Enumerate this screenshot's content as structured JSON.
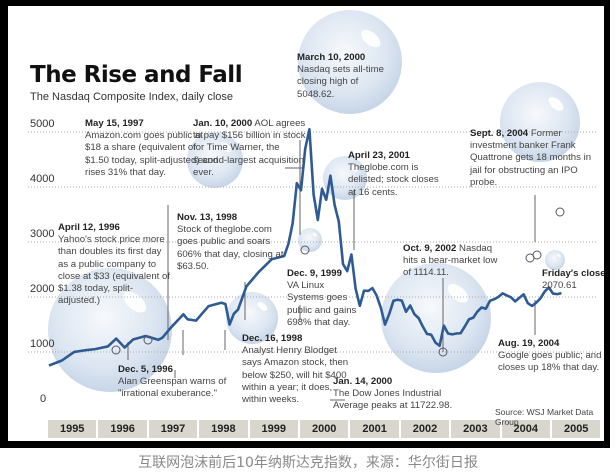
{
  "chart_data": {
    "type": "line",
    "title": "The Rise and Fall",
    "subtitle": "The Nasdaq Composite Index, daily close",
    "ylim": [
      0,
      5200
    ],
    "yticks": [
      "0",
      "1000",
      "2000",
      "3000",
      "4000",
      "5000"
    ],
    "xticks": [
      "1995",
      "1996",
      "1997",
      "1998",
      "1999",
      "2000",
      "2001",
      "2002",
      "2003",
      "2004",
      "2005"
    ],
    "grid": true,
    "line_color": "#2e5b93",
    "series": [
      {
        "points": [
          [
            "1995-01",
            755
          ],
          [
            "1995-04",
            843
          ],
          [
            "1995-07",
            1001
          ],
          [
            "1995-10",
            1036
          ],
          [
            "1995-12",
            1052
          ],
          [
            "1996-03",
            1101
          ],
          [
            "1996-05",
            1243
          ],
          [
            "1996-07",
            1081
          ],
          [
            "1996-09",
            1227
          ],
          [
            "1996-12",
            1291
          ],
          [
            "1997-03",
            1222
          ],
          [
            "1997-04",
            1260
          ],
          [
            "1997-06",
            1442
          ],
          [
            "1997-09",
            1686
          ],
          [
            "1997-10",
            1594
          ],
          [
            "1997-12",
            1570
          ],
          [
            "1998-03",
            1835
          ],
          [
            "1998-06",
            1895
          ],
          [
            "1998-07",
            1872
          ],
          [
            "1998-08",
            1499
          ],
          [
            "1998-09",
            1694
          ],
          [
            "1998-10",
            1771
          ],
          [
            "1998-12",
            2193
          ],
          [
            "1999-03",
            2461
          ],
          [
            "1999-06",
            2686
          ],
          [
            "1999-09",
            2746
          ],
          [
            "1999-10",
            2966
          ],
          [
            "1999-11",
            3336
          ],
          [
            "1999-12",
            4069
          ],
          [
            "2000-01",
            3940
          ],
          [
            "2000-02",
            4696
          ],
          [
            "2000-03",
            5048.62
          ],
          [
            "2000-04",
            3861
          ],
          [
            "2000-05",
            3400
          ],
          [
            "2000-06",
            3966
          ],
          [
            "2000-07",
            3767
          ],
          [
            "2000-08",
            4206
          ],
          [
            "2000-09",
            3673
          ],
          [
            "2000-10",
            3370
          ],
          [
            "2000-11",
            2598
          ],
          [
            "2000-12",
            2471
          ],
          [
            "2001-01",
            2773
          ],
          [
            "2001-02",
            2152
          ],
          [
            "2001-03",
            1840
          ],
          [
            "2001-04",
            2116
          ],
          [
            "2001-05",
            2110
          ],
          [
            "2001-06",
            2161
          ],
          [
            "2001-07",
            2027
          ],
          [
            "2001-08",
            1805
          ],
          [
            "2001-09",
            1499
          ],
          [
            "2001-10",
            1690
          ],
          [
            "2001-11",
            1931
          ],
          [
            "2001-12",
            1950
          ],
          [
            "2002-01",
            1934
          ],
          [
            "2002-02",
            1731
          ],
          [
            "2002-03",
            1845
          ],
          [
            "2002-04",
            1688
          ],
          [
            "2002-05",
            1616
          ],
          [
            "2002-06",
            1463
          ],
          [
            "2002-07",
            1328
          ],
          [
            "2002-08",
            1315
          ],
          [
            "2002-09",
            1172
          ],
          [
            "2002-10",
            1114.11
          ],
          [
            "2002-11",
            1479
          ],
          [
            "2002-12",
            1336
          ],
          [
            "2003-01",
            1321
          ],
          [
            "2003-02",
            1337
          ],
          [
            "2003-03",
            1341
          ],
          [
            "2003-04",
            1464
          ],
          [
            "2003-05",
            1596
          ],
          [
            "2003-06",
            1623
          ],
          [
            "2003-07",
            1735
          ],
          [
            "2003-08",
            1810
          ],
          [
            "2003-09",
            1787
          ],
          [
            "2003-10",
            1932
          ],
          [
            "2003-11",
            1960
          ],
          [
            "2003-12",
            2003
          ],
          [
            "2004-01",
            2066
          ],
          [
            "2004-02",
            2029
          ],
          [
            "2004-03",
            1994
          ],
          [
            "2004-04",
            1920
          ],
          [
            "2004-05",
            1987
          ],
          [
            "2004-06",
            2048
          ],
          [
            "2004-07",
            1887
          ],
          [
            "2004-08",
            1838
          ],
          [
            "2004-09",
            1897
          ],
          [
            "2004-10",
            1975
          ],
          [
            "2004-11",
            2097
          ],
          [
            "2004-12",
            2175
          ],
          [
            "2005-01",
            2062
          ],
          [
            "2005-02",
            2052
          ],
          [
            "2005-03",
            2070.61
          ]
        ]
      }
    ],
    "annotations": [
      {
        "date": "May 15, 1997",
        "text": "Amazon.com goes public at $18 a share (equivalent of $1.50 today, split-adjusted) and rises 31% that day."
      },
      {
        "date": "Jan. 10, 2000",
        "text": "AOL agrees to pay $156 billion in stock for Time Warner, the second-largest acquisition ever."
      },
      {
        "date": "March 10, 2000",
        "text": "Nasdaq sets all-time closing high of 5048.62."
      },
      {
        "date": "April 23, 2001",
        "text": "Theglobe.com is delisted; stock closes at 16 cents."
      },
      {
        "date": "Sept. 8, 2004",
        "text": "Former investment banker Frank Quattrone gets 18 months in jail for obstructing an IPO probe."
      },
      {
        "date": "April 12, 1996",
        "text": "Yahoo's stock price more than doubles its first day as a public company to close at $33 (equivalent of $1.38 today, split-adjusted.)"
      },
      {
        "date": "Nov. 13, 1998",
        "text": "Stock of theglobe.com goes public and soars 606% that day, closing at $63.50."
      },
      {
        "date": "Dec. 9, 1999",
        "text": "VA Linux Systems goes public and gains 698% that day."
      },
      {
        "date": "Oct. 9, 2002",
        "text": "Nasdaq hits a bear-market low of 1114.11."
      },
      {
        "date": "Friday's close:",
        "text": "2070.61"
      },
      {
        "date": "Dec. 5, 1996",
        "text": "Alan Greenspan warns of \"irrational exuberance.\""
      },
      {
        "date": "Dec. 16, 1998",
        "text": "Analyst Henry Blodget says Amazon stock, then below $250, will hit $400 within a year; it does, within weeks."
      },
      {
        "date": "Jan. 14, 2000",
        "text": "The Dow Jones Industrial Average peaks at 11722.98."
      },
      {
        "date": "Aug. 19, 2004",
        "text": "Google goes public; and closes up 18% that day."
      }
    ],
    "source": "Source: WSJ Market Data Group"
  },
  "caption": "互联网泡沫前后10年纳斯达克指数，来源：华尔街日报"
}
